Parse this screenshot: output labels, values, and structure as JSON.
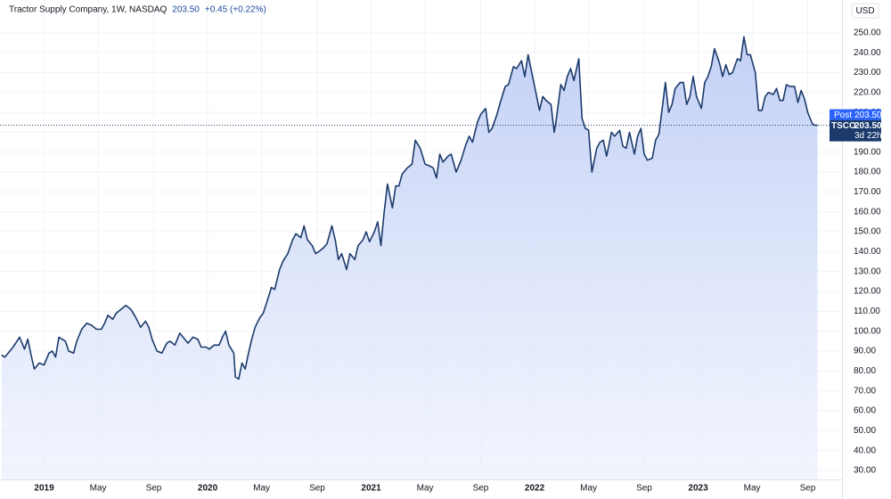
{
  "chart_data": {
    "type": "area",
    "title": "Tractor Supply Company, 1W, NASDAQ",
    "price": "203.50",
    "change": "+0.45 (+0.22%)",
    "currency": "USD",
    "last_price": 203.5,
    "price_tags": [
      {
        "label": "Post",
        "value": "203.50"
      },
      {
        "label": "TSCO",
        "value": "203.50",
        "countdown": "3d 22h"
      }
    ],
    "series": [
      {
        "name": "TSCO",
        "color": "#1b3a6b",
        "x": [
          2018.74,
          2018.76,
          2018.81,
          2018.85,
          2018.88,
          2018.9,
          2018.92,
          2018.94,
          2018.97,
          2019.0,
          2019.03,
          2019.05,
          2019.07,
          2019.09,
          2019.13,
          2019.15,
          2019.18,
          2019.2,
          2019.23,
          2019.26,
          2019.29,
          2019.32,
          2019.35,
          2019.37,
          2019.39,
          2019.42,
          2019.44,
          2019.47,
          2019.5,
          2019.53,
          2019.56,
          2019.59,
          2019.62,
          2019.64,
          2019.66,
          2019.69,
          2019.72,
          2019.75,
          2019.77,
          2019.8,
          2019.83,
          2019.86,
          2019.88,
          2019.91,
          2019.94,
          2019.96,
          2019.99,
          2020.01,
          2020.04,
          2020.07,
          2020.09,
          2020.11,
          2020.13,
          2020.16,
          2020.17,
          2020.19,
          2020.21,
          2020.23,
          2020.25,
          2020.27,
          2020.29,
          2020.32,
          2020.34,
          2020.36,
          2020.39,
          2020.41,
          2020.44,
          2020.46,
          2020.49,
          2020.52,
          2020.54,
          2020.57,
          2020.59,
          2020.61,
          2020.64,
          2020.66,
          2020.68,
          2020.71,
          2020.73,
          2020.76,
          2020.78,
          2020.8,
          2020.82,
          2020.85,
          2020.87,
          2020.9,
          2020.92,
          2020.95,
          2020.97,
          2020.99,
          2021.02,
          2021.04,
          2021.06,
          2021.08,
          2021.1,
          2021.13,
          2021.15,
          2021.17,
          2021.19,
          2021.22,
          2021.25,
          2021.27,
          2021.3,
          2021.33,
          2021.36,
          2021.38,
          2021.4,
          2021.42,
          2021.44,
          2021.47,
          2021.49,
          2021.52,
          2021.55,
          2021.58,
          2021.6,
          2021.62,
          2021.65,
          2021.67,
          2021.7,
          2021.72,
          2021.74,
          2021.77,
          2021.79,
          2021.82,
          2021.84,
          2021.87,
          2021.89,
          2021.92,
          2021.94,
          2021.96,
          2021.99,
          2022.01,
          2022.03,
          2022.05,
          2022.07,
          2022.1,
          2022.12,
          2022.13,
          2022.16,
          2022.18,
          2022.2,
          2022.22,
          2022.24,
          2022.27,
          2022.29,
          2022.31,
          2022.33,
          2022.35,
          2022.38,
          2022.4,
          2022.42,
          2022.44,
          2022.47,
          2022.49,
          2022.52,
          2022.54,
          2022.56,
          2022.58,
          2022.61,
          2022.63,
          2022.65,
          2022.67,
          2022.69,
          2022.72,
          2022.74,
          2022.76,
          2022.78,
          2022.8,
          2022.82,
          2022.84,
          2022.86,
          2022.89,
          2022.91,
          2022.93,
          2022.95,
          2022.97,
          2022.99,
          2023.02,
          2023.04,
          2023.06,
          2023.08,
          2023.1,
          2023.13,
          2023.15,
          2023.17,
          2023.19,
          2023.21,
          2023.24,
          2023.26,
          2023.28,
          2023.3,
          2023.32,
          2023.35,
          2023.37,
          2023.39,
          2023.41,
          2023.43,
          2023.46,
          2023.48,
          2023.5,
          2023.52,
          2023.54,
          2023.56,
          2023.59,
          2023.61,
          2023.63,
          2023.65,
          2023.67,
          2023.7,
          2023.72,
          2023.73
        ],
        "values": [
          88,
          87,
          92,
          97,
          91,
          96,
          88,
          81,
          84,
          83,
          89,
          90,
          87,
          97,
          95,
          90,
          89,
          95,
          101,
          104,
          103,
          101,
          101,
          104,
          108,
          106,
          109,
          111,
          113,
          111,
          107,
          102,
          105,
          102,
          96,
          90,
          89,
          94,
          95,
          93,
          99,
          96,
          94,
          97,
          96,
          92,
          92,
          91,
          93,
          93,
          97,
          100,
          93,
          89,
          77,
          76,
          84,
          81,
          89,
          96,
          102,
          107,
          109,
          114,
          122,
          121,
          131,
          135,
          139,
          146,
          149,
          147,
          153,
          146,
          143,
          139,
          140,
          142,
          144,
          153,
          146,
          136,
          139,
          131,
          139,
          136,
          143,
          146,
          150,
          145,
          150,
          155,
          143,
          160,
          174,
          162,
          173,
          173,
          179,
          182,
          184,
          196,
          192,
          184,
          183,
          182,
          177,
          189,
          185,
          188,
          189,
          180,
          186,
          194,
          198,
          195,
          205,
          209,
          212,
          200,
          202,
          209,
          215,
          223,
          224,
          233,
          232,
          236,
          228,
          239,
          227,
          219,
          211,
          218,
          216,
          214,
          200,
          205,
          224,
          221,
          228,
          232,
          226,
          237,
          207,
          202,
          201,
          180,
          192,
          195,
          196,
          188,
          200,
          198,
          201,
          193,
          192,
          200,
          189,
          198,
          202,
          189,
          186,
          187,
          196,
          199,
          212,
          225,
          210,
          214,
          222,
          225,
          225,
          214,
          218,
          228,
          218,
          212,
          225,
          228,
          233,
          242,
          235,
          228,
          234,
          229,
          230,
          237,
          236,
          248,
          239,
          239,
          230,
          211,
          211,
          218,
          220,
          219,
          222,
          216,
          216,
          224,
          223,
          223,
          215,
          221,
          217,
          210,
          204,
          203.5,
          203.5
        ]
      }
    ],
    "xlim": [
      2018.73,
      2023.88
    ],
    "xticks": [
      2019,
      {
        "value": 2019.33,
        "label": "May"
      },
      {
        "value": 2019.67,
        "label": "Sep"
      },
      2020,
      {
        "value": 2020.33,
        "label": "May"
      },
      {
        "value": 2020.67,
        "label": "Sep"
      },
      2021,
      {
        "value": 2021.33,
        "label": "May"
      },
      {
        "value": 2021.67,
        "label": "Sep"
      },
      2022,
      {
        "value": 2022.33,
        "label": "May"
      },
      {
        "value": 2022.67,
        "label": "Sep"
      },
      2023,
      {
        "value": 2023.33,
        "label": "May"
      },
      {
        "value": 2023.67,
        "label": "Sep"
      }
    ],
    "ylim": [
      25.5,
      266.5
    ],
    "yticks": [
      {
        "value": 30,
        "label": "30.00"
      },
      {
        "value": 40,
        "label": "40.00"
      },
      {
        "value": 50,
        "label": "50.00"
      },
      {
        "value": 60,
        "label": "60.00"
      },
      {
        "value": 70,
        "label": "70.00"
      },
      {
        "value": 80,
        "label": "80.00"
      },
      {
        "value": 90,
        "label": "90.00"
      },
      {
        "value": 100,
        "label": "100.00"
      },
      {
        "value": 110,
        "label": "110.00"
      },
      {
        "value": 120,
        "label": "120.00"
      },
      {
        "value": 130,
        "label": "130.00"
      },
      {
        "value": 140,
        "label": "140.00"
      },
      {
        "value": 150,
        "label": "150.00"
      },
      {
        "value": 160,
        "label": "160.00"
      },
      {
        "value": 170,
        "label": "170.00"
      },
      {
        "value": 180,
        "label": "180.00"
      },
      {
        "value": 190,
        "label": "190.00"
      },
      {
        "value": 200,
        "label": "200.00"
      },
      {
        "value": 210,
        "label": "210.00"
      },
      {
        "value": 220,
        "label": "220.00"
      },
      {
        "value": 230,
        "label": "230.00"
      },
      {
        "value": 240,
        "label": "240.00"
      },
      {
        "value": 250,
        "label": "250.00"
      }
    ],
    "grid": true
  }
}
